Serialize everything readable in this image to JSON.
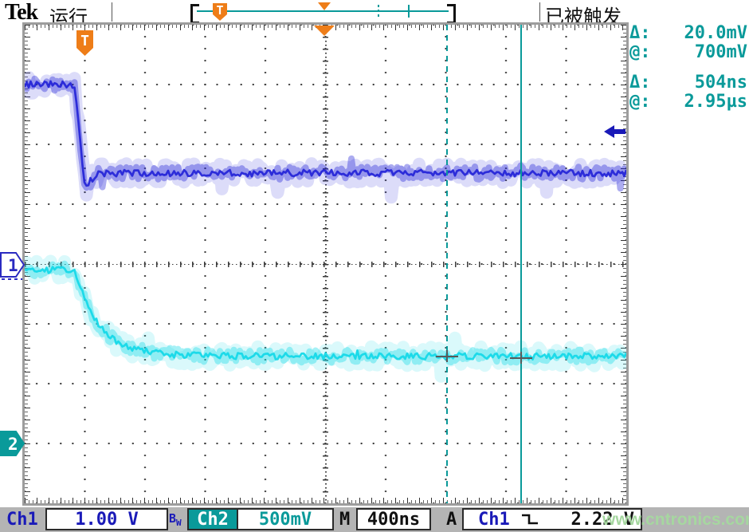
{
  "topbar": {
    "brand": "Tek",
    "run_status": "运行",
    "trigger_status": "已被触发",
    "record_trigger_label": "T"
  },
  "markers": {
    "trigger_badge": "T",
    "ch1": "1",
    "ch2": "2"
  },
  "readout": {
    "rows": [
      {
        "label": "Δ:",
        "value": "20.0mV"
      },
      {
        "label": "@:",
        "value": "700mV"
      },
      {
        "label": "Δ:",
        "value": "504ns"
      },
      {
        "label": "@:",
        "value": "2.95µs"
      }
    ]
  },
  "bottombar": {
    "ch1_label": "Ch1",
    "ch1_scale": "1.00 V",
    "bw_main": "B",
    "bw_sub": "W",
    "ch2_label": "Ch2",
    "ch2_scale": "500mV",
    "timebase_label": "M",
    "timebase": "400ns",
    "trigger_mode_label": "A",
    "trigger_source": "Ch1",
    "trigger_level": "2.22 V"
  },
  "watermark": "www.cntronics.com",
  "colors": {
    "ch1_trace": "#2626d8",
    "ch2_trace": "#16d9e8",
    "teal_ui": "#0a9a9a",
    "orange": "#ee7d18",
    "navy_ui": "#1a1ab8",
    "watermark_green": "#a6d7a0"
  },
  "chart_data": {
    "type": "line",
    "instrument": "oscilloscope",
    "x_axis": {
      "time_per_div": "400ns",
      "divisions": 10
    },
    "y_axis": {
      "divisions": 8
    },
    "series": [
      {
        "name": "Ch1",
        "scale": "1.00 V/div",
        "color": "#2626d8",
        "ground_div_from_top": 4,
        "volts_per_div": 1.0,
        "high_v": 3.0,
        "low_v": 1.52,
        "undershoot_v": -0.25,
        "edge_start_div": 0.83,
        "edge_width_div": 0.17,
        "settle_div": 0.2,
        "edge_shape": "linear-fall"
      },
      {
        "name": "Ch2",
        "scale": "500mV/div",
        "color": "#16d9e8",
        "ground_div_from_top": 7,
        "volts_per_div": 0.5,
        "high_v": 1.45,
        "low_v": 0.73,
        "edge_start_div": 0.83,
        "tau_div": 0.4,
        "edge_shape": "exponential-fall"
      }
    ],
    "cursors": {
      "attached_to": "Ch2",
      "x1_div": 7.02,
      "x2_div": 8.25,
      "delta_v": "20.0mV",
      "at_v": "700mV",
      "delta_t": "504ns",
      "at_t": "2.95µs"
    },
    "trigger": {
      "source": "Ch1",
      "slope": "falling",
      "level_v": 2.22,
      "position_div": 1.0
    }
  }
}
